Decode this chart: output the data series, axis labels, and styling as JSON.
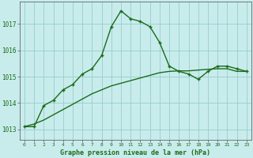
{
  "line1_x": [
    0,
    1,
    2,
    3,
    4,
    5,
    6,
    7,
    8,
    9,
    10,
    11,
    12,
    13,
    14,
    15,
    16,
    17,
    18,
    19,
    20,
    21,
    22,
    23
  ],
  "line1_y": [
    1013.1,
    1013.1,
    1013.9,
    1014.1,
    1014.5,
    1014.7,
    1015.1,
    1015.3,
    1015.8,
    1016.9,
    1017.5,
    1017.2,
    1017.1,
    1016.9,
    1016.3,
    1015.4,
    1015.2,
    1015.1,
    1014.9,
    1015.2,
    1015.4,
    1015.4,
    1015.3,
    1015.2
  ],
  "line2_x": [
    0,
    1,
    2,
    3,
    4,
    5,
    6,
    7,
    8,
    9,
    10,
    11,
    12,
    13,
    14,
    15,
    16,
    17,
    18,
    19,
    20,
    21,
    22,
    23
  ],
  "line2_y": [
    1013.1,
    1013.2,
    1013.35,
    1013.55,
    1013.75,
    1013.95,
    1014.15,
    1014.35,
    1014.5,
    1014.65,
    1014.75,
    1014.85,
    1014.95,
    1015.05,
    1015.15,
    1015.2,
    1015.22,
    1015.22,
    1015.25,
    1015.28,
    1015.3,
    1015.3,
    1015.2,
    1015.2
  ],
  "line_color": "#1a6b1a",
  "bg_color": "#c8ecec",
  "grid_color": "#99cccc",
  "xlabel": "Graphe pression niveau de la mer (hPa)",
  "ylim": [
    1012.6,
    1017.85
  ],
  "xlim": [
    -0.5,
    23.5
  ],
  "yticks": [
    1013,
    1014,
    1015,
    1016,
    1017
  ],
  "xticks": [
    0,
    1,
    2,
    3,
    4,
    5,
    6,
    7,
    8,
    9,
    10,
    11,
    12,
    13,
    14,
    15,
    16,
    17,
    18,
    19,
    20,
    21,
    22,
    23
  ],
  "xtick_labels": [
    "0",
    "1",
    "2",
    "3",
    "4",
    "5",
    "6",
    "7",
    "8",
    "9",
    "10",
    "11",
    "12",
    "13",
    "14",
    "15",
    "16",
    "17",
    "18",
    "19",
    "20",
    "21",
    "22",
    "23"
  ]
}
